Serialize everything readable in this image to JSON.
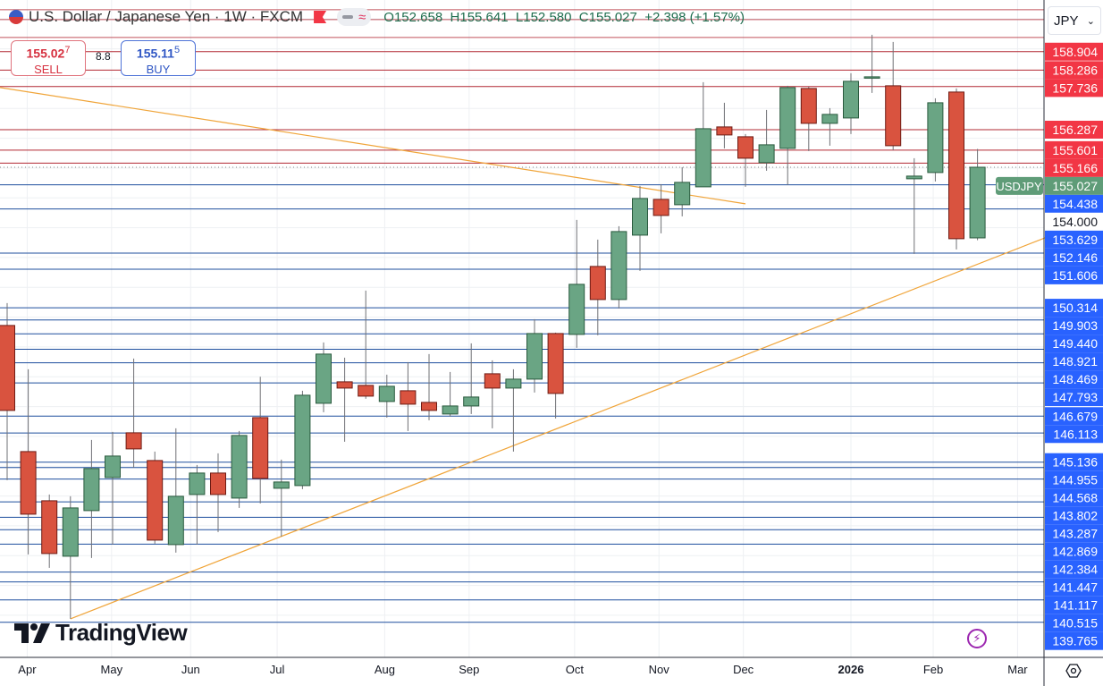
{
  "header": {
    "title": "U.S. Dollar / Japanese Yen · 1W · FXCM",
    "ohlc": "O152.658  H155.641  L152.580  C155.027  +2.398 (+1.57%)",
    "change_color": "#1f6e4f"
  },
  "trade": {
    "sell_price": "155.02",
    "sell_price_sup": "7",
    "sell_label": "SELL",
    "spread": "8.8",
    "buy_price": "155.11",
    "buy_price_sup": "5",
    "buy_label": "BUY"
  },
  "currency_selector": {
    "value": "JPY"
  },
  "logo": {
    "text": "TradingView"
  },
  "colors": {
    "up": "#6aa584",
    "down": "#d9533f",
    "resistance": "#b22833",
    "support": "#1f4f9e",
    "resistance_label": "#f23645",
    "support_label": "#2962ff",
    "trendline": "#f0a53a",
    "last_price": "#5f9c78"
  },
  "chart_data": {
    "type": "candlestick",
    "symbol": "USDJPY",
    "interval": "1W",
    "last_price": 155.027,
    "y_range": [
      138.6,
      160.6
    ],
    "grid": true,
    "x_ticks": [
      {
        "label": "Apr",
        "week_index": 0.95
      },
      {
        "label": "May",
        "week_index": 4.95
      },
      {
        "label": "Jun",
        "week_index": 8.7
      },
      {
        "label": "Jul",
        "week_index": 12.8
      },
      {
        "label": "Aug",
        "week_index": 17.9
      },
      {
        "label": "Sep",
        "week_index": 21.9
      },
      {
        "label": "Oct",
        "week_index": 26.9
      },
      {
        "label": "Nov",
        "week_index": 30.9
      },
      {
        "label": "Dec",
        "week_index": 34.9
      },
      {
        "label": "2026",
        "week_index": 40.0,
        "bold": true
      },
      {
        "label": "Feb",
        "week_index": 43.9
      },
      {
        "label": "Mar",
        "week_index": 47.9
      }
    ],
    "candles": [
      [
        149.72,
        150.47,
        144.53,
        146.87
      ],
      [
        145.49,
        148.25,
        142.04,
        143.39
      ],
      [
        143.84,
        144.05,
        141.59,
        142.07
      ],
      [
        141.98,
        143.99,
        139.88,
        143.6
      ],
      [
        143.51,
        145.88,
        141.92,
        144.92
      ],
      [
        144.62,
        146.15,
        142.37,
        145.34
      ],
      [
        146.12,
        148.61,
        144.95,
        145.58
      ],
      [
        145.19,
        145.49,
        142.4,
        142.52
      ],
      [
        142.37,
        146.27,
        142.1,
        143.99
      ],
      [
        144.05,
        145.04,
        142.37,
        144.77
      ],
      [
        144.77,
        145.43,
        142.79,
        144.05
      ],
      [
        143.93,
        146.18,
        143.6,
        146.03
      ],
      [
        146.63,
        148.0,
        143.75,
        144.59
      ],
      [
        144.26,
        145.22,
        142.64,
        144.47
      ],
      [
        144.35,
        147.53,
        144.23,
        147.38
      ],
      [
        147.11,
        149.15,
        146.81,
        148.76
      ],
      [
        147.83,
        148.64,
        145.82,
        147.62
      ],
      [
        147.71,
        150.89,
        147.26,
        147.35
      ],
      [
        147.17,
        148.07,
        146.63,
        147.68
      ],
      [
        147.53,
        148.49,
        146.18,
        147.08
      ],
      [
        147.14,
        148.76,
        146.54,
        146.87
      ],
      [
        146.75,
        148.16,
        146.66,
        147.02
      ],
      [
        147.02,
        149.12,
        146.75,
        147.32
      ],
      [
        148.1,
        148.55,
        146.27,
        147.62
      ],
      [
        147.62,
        148.25,
        145.49,
        147.92
      ],
      [
        147.92,
        149.93,
        147.47,
        149.45
      ],
      [
        149.45,
        149.48,
        146.6,
        147.44
      ],
      [
        149.42,
        153.26,
        148.97,
        151.1
      ],
      [
        151.7,
        152.6,
        149.39,
        150.59
      ],
      [
        150.59,
        153.05,
        150.29,
        152.87
      ],
      [
        152.75,
        154.4,
        151.55,
        153.98
      ],
      [
        153.95,
        154.46,
        152.81,
        153.41
      ],
      [
        153.77,
        155.03,
        153.38,
        154.52
      ],
      [
        154.37,
        157.88,
        154.37,
        156.32
      ],
      [
        156.38,
        157.19,
        155.66,
        156.11
      ],
      [
        156.05,
        156.14,
        154.37,
        155.33
      ],
      [
        155.18,
        156.95,
        154.91,
        155.78
      ],
      [
        155.66,
        157.76,
        154.43,
        157.7
      ],
      [
        157.67,
        157.73,
        155.57,
        156.5
      ],
      [
        156.5,
        157.01,
        155.75,
        156.8
      ],
      [
        156.68,
        158.18,
        156.14,
        157.91
      ],
      [
        158.06,
        159.47,
        157.52,
        158.06
      ],
      [
        157.76,
        159.23,
        155.6,
        155.75
      ],
      [
        154.64,
        155.33,
        152.12,
        154.73
      ],
      [
        154.85,
        157.34,
        154.55,
        157.19
      ],
      [
        157.55,
        157.67,
        152.27,
        152.63
      ],
      [
        152.658,
        155.641,
        152.58,
        155.027
      ]
    ],
    "resistance_levels": [
      "158.904",
      "158.286",
      "157.736",
      "156.287",
      "155.601",
      "155.166"
    ],
    "unlabeled_resistance_levels": [
      160.31,
      159.98,
      159.38
    ],
    "support_levels": [
      "154.438",
      "153.629",
      "152.146",
      "151.606",
      "150.314",
      "149.903",
      "149.440",
      "148.921",
      "148.469",
      "147.793",
      "146.679",
      "146.113",
      "145.136",
      "144.955",
      "144.568",
      "143.802",
      "143.287",
      "142.869",
      "142.384",
      "141.447",
      "141.117",
      "140.515",
      "139.765"
    ],
    "axis_tick_label": "154.000",
    "last_price_label": "USDJPY",
    "trendlines": [
      {
        "from": {
          "week_index": -0.34,
          "price": 157.7
        },
        "to": {
          "week_index": 35.0,
          "price": 153.8
        }
      },
      {
        "from": {
          "week_index": 3.0,
          "price": 139.88
        },
        "to": {
          "week_index": 49.2,
          "price": 152.66
        }
      }
    ]
  }
}
